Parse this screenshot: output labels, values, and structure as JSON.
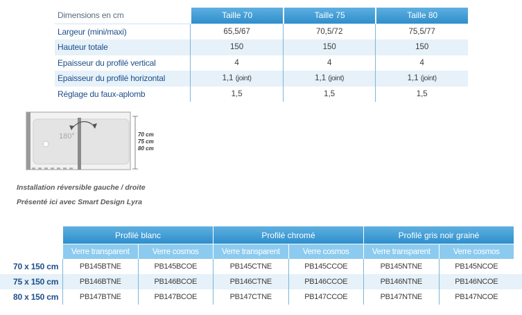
{
  "dimensions": {
    "header": "Dimensions en cm",
    "columns": [
      "Taille 70",
      "Taille 75",
      "Taille 80"
    ],
    "rows": [
      {
        "label": "Largeur (mini/maxi)",
        "values": [
          "65,5/67",
          "70,5/72",
          "75,5/77"
        ]
      },
      {
        "label": "Hauteur totale",
        "values": [
          "150",
          "150",
          "150"
        ]
      },
      {
        "label": "Epaisseur du profilé vertical",
        "values": [
          "4",
          "4",
          "4"
        ]
      },
      {
        "label": "Epaisseur du profilé horizontal",
        "values": [
          "1,1",
          "1,1",
          "1,1"
        ],
        "note": "(joint)"
      },
      {
        "label": "Réglage du faux-aplomb",
        "values": [
          "1,5",
          "1,5",
          "1,5"
        ]
      }
    ]
  },
  "diagram": {
    "angle": "180°",
    "sizes": [
      "70 cm",
      "75 cm",
      "80 cm"
    ]
  },
  "captions": {
    "line1": "Installation réversible gauche / droite",
    "line2": "Présenté ici avec Smart Design Lyra"
  },
  "references": {
    "groups": [
      "Profilé blanc",
      "Profilé chromé",
      "Profilé gris noir grainé"
    ],
    "subheaders": [
      "Verre transparent",
      "Verre cosmos",
      "Verre transparent",
      "Verre cosmos",
      "Verre transparent",
      "Verre cosmos"
    ],
    "rows": [
      {
        "size": "70 x 150 cm",
        "codes": [
          "PB145BTNE",
          "PB145BCOE",
          "PB145CTNE",
          "PB145CCOE",
          "PB145NTNE",
          "PB145NCOE"
        ]
      },
      {
        "size": "75 x 150 cm",
        "codes": [
          "PB146BTNE",
          "PB146BCOE",
          "PB146CTNE",
          "PB146CCOE",
          "PB146NTNE",
          "PB146NCOE"
        ]
      },
      {
        "size": "80 x 150 cm",
        "codes": [
          "PB147BTNE",
          "PB147BCOE",
          "PB147CTNE",
          "PB147CCOE",
          "PB147NTNE",
          "PB147NCOE"
        ]
      }
    ]
  },
  "colors": {
    "header_blue": "#2e8ecc",
    "subheader_blue": "#8ccbef",
    "label_blue": "#1d4f8a",
    "row_alt": "#e6f1f9"
  }
}
